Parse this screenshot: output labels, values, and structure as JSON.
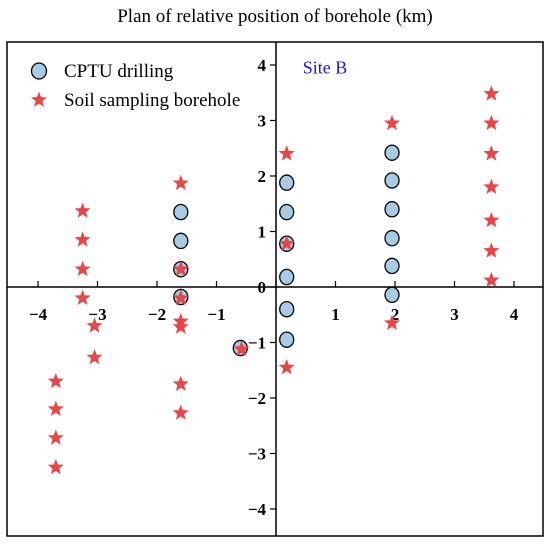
{
  "chart_data": {
    "type": "scatter",
    "title": "Plan of relative position of borehole (km)",
    "xlim": [
      -4.5,
      4.5
    ],
    "ylim": [
      -4.5,
      4.5
    ],
    "x_ticks": [
      -4,
      -3,
      -2,
      -1,
      0,
      1,
      2,
      3,
      4
    ],
    "y_ticks": [
      -4,
      -3,
      -2,
      -1,
      0,
      1,
      2,
      3,
      4
    ],
    "grid": false,
    "legend_position": "top-left",
    "annotation": {
      "text": "Site B",
      "x": 0.45,
      "y": 3.85
    },
    "series": [
      {
        "name": "CPTU drilling",
        "marker": "circle",
        "color": "#a8cbe4",
        "points": [
          [
            -1.6,
            1.35
          ],
          [
            -1.6,
            0.83
          ],
          [
            -1.6,
            0.32
          ],
          [
            -1.6,
            -0.18
          ],
          [
            -0.6,
            -1.1
          ],
          [
            0.18,
            1.88
          ],
          [
            0.18,
            1.35
          ],
          [
            0.18,
            0.78
          ],
          [
            0.18,
            0.18
          ],
          [
            0.18,
            -0.4
          ],
          [
            0.18,
            -0.95
          ],
          [
            1.95,
            2.42
          ],
          [
            1.95,
            1.92
          ],
          [
            1.95,
            1.4
          ],
          [
            1.95,
            0.88
          ],
          [
            1.95,
            0.38
          ],
          [
            1.95,
            -0.14
          ]
        ]
      },
      {
        "name": "Soil sampling borehole",
        "marker": "star",
        "color": "#e8474a",
        "points": [
          [
            -3.7,
            -1.7
          ],
          [
            -3.7,
            -2.2
          ],
          [
            -3.7,
            -2.72
          ],
          [
            -3.7,
            -3.25
          ],
          [
            -3.25,
            1.37
          ],
          [
            -3.25,
            0.85
          ],
          [
            -3.25,
            0.32
          ],
          [
            -3.25,
            -0.2
          ],
          [
            -3.05,
            -0.7
          ],
          [
            -3.05,
            -1.27
          ],
          [
            -1.6,
            1.87
          ],
          [
            -1.6,
            0.32
          ],
          [
            -1.6,
            -0.2
          ],
          [
            -1.6,
            -0.62
          ],
          [
            -1.6,
            -0.72
          ],
          [
            -1.6,
            -1.75
          ],
          [
            -1.6,
            -2.27
          ],
          [
            -0.58,
            -1.12
          ],
          [
            0.18,
            2.4
          ],
          [
            0.18,
            0.78
          ],
          [
            0.18,
            -1.45
          ],
          [
            1.95,
            2.95
          ],
          [
            1.95,
            -0.65
          ],
          [
            3.62,
            3.48
          ],
          [
            3.62,
            2.95
          ],
          [
            3.62,
            2.4
          ],
          [
            3.62,
            1.8
          ],
          [
            3.62,
            1.2
          ],
          [
            3.62,
            0.65
          ],
          [
            3.62,
            0.12
          ]
        ]
      }
    ]
  }
}
